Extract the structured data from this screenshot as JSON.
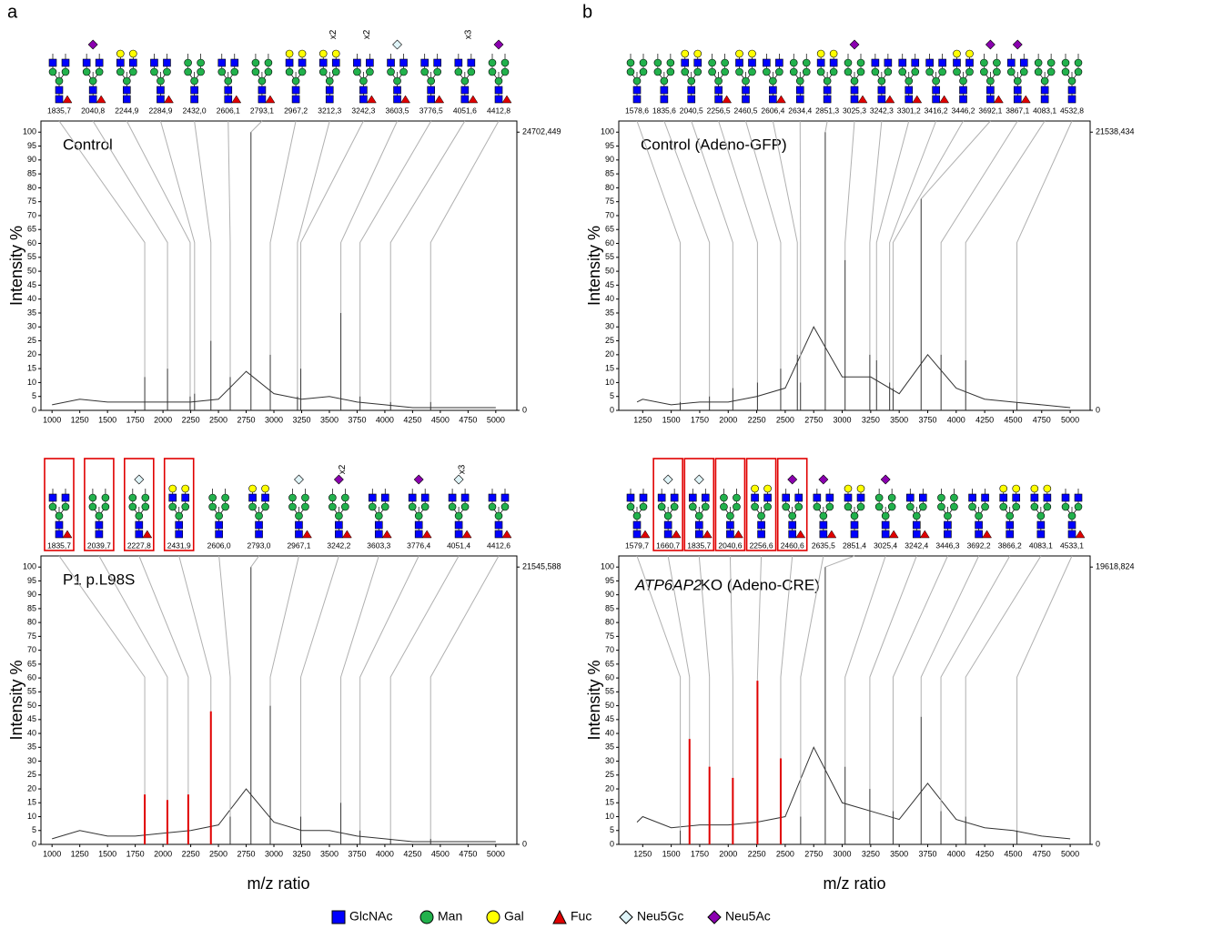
{
  "panel_labels": [
    "a",
    "b"
  ],
  "y_label": "Intensity %",
  "x_label": "m/z ratio",
  "legend": [
    {
      "name": "GlcNAc",
      "color": "#0000ff",
      "shape": "square"
    },
    {
      "name": "Man",
      "color": "#22b14c",
      "shape": "circle"
    },
    {
      "name": "Gal",
      "color": "#ffff00",
      "shape": "circle"
    },
    {
      "name": "Fuc",
      "color": "#e00000",
      "shape": "triangle"
    },
    {
      "name": "Neu5Gc",
      "color": "#dff4f8",
      "shape": "diamond"
    },
    {
      "name": "Neu5Ac",
      "color": "#8b00b0",
      "shape": "diamond"
    }
  ],
  "chart_data": [
    {
      "type": "spectrum",
      "title": "Control",
      "xlim": [
        900,
        5190
      ],
      "xticks": [
        1000,
        1250,
        1500,
        1750,
        2000,
        2250,
        2500,
        2750,
        3000,
        3250,
        3500,
        3750,
        4000,
        4250,
        4500,
        4750,
        5000
      ],
      "ylim": [
        0,
        104
      ],
      "yticks": [
        0,
        5,
        10,
        15,
        20,
        25,
        30,
        35,
        40,
        45,
        50,
        55,
        60,
        65,
        70,
        75,
        80,
        85,
        90,
        95,
        100
      ],
      "y2lim": [
        0,
        25690.547
      ],
      "y2ticks": [
        0,
        {
          "value": 24702.449,
          "label": "24702,449"
        }
      ],
      "x": [
        1000,
        1250,
        1500,
        1750,
        2000,
        2250,
        2500,
        2750,
        3000,
        3250,
        3500,
        3750,
        4000,
        4250,
        4500,
        4750,
        5000
      ],
      "values": [
        2,
        4,
        3,
        3,
        3,
        3,
        4,
        14,
        6,
        4,
        5,
        3,
        2,
        1,
        1,
        1,
        1
      ],
      "peaks": [
        {
          "value": 1835.7,
          "label": "1835,7"
        },
        {
          "value": 2040.8,
          "label": "2040,8"
        },
        {
          "value": 2244.9,
          "label": "2244,9"
        },
        {
          "value": 2284.9,
          "label": "2284,9"
        },
        {
          "value": 2432.0,
          "label": "2432,0"
        },
        {
          "value": 2606.1,
          "label": "2606,1"
        },
        {
          "value": 2793.1,
          "label": "2793,1"
        },
        {
          "value": 2967.2,
          "label": "2967,2"
        },
        {
          "value": 3212.3,
          "label": "3212,3"
        },
        {
          "value": 3242.3,
          "label": "3242,3"
        },
        {
          "value": 3603.5,
          "label": "3603,5"
        },
        {
          "value": 3776.5,
          "label": "3776,5"
        },
        {
          "value": 4051.6,
          "label": "4051,6"
        },
        {
          "value": 4412.8,
          "label": "4412,8"
        }
      ],
      "peak_values": [
        12,
        15,
        5,
        6,
        25,
        12,
        100,
        20,
        5,
        15,
        35,
        5,
        3,
        3
      ],
      "highlight": [
        false,
        false,
        false,
        false,
        false,
        false,
        false,
        false,
        false,
        false,
        false,
        false,
        false,
        false
      ],
      "multipliers": [
        null,
        null,
        null,
        null,
        null,
        null,
        null,
        null,
        "x2",
        "x2",
        null,
        null,
        "x3",
        null
      ],
      "line_color": "#333333",
      "highlight_color": "#e00000"
    },
    {
      "type": "spectrum",
      "title": "Control (Adeno-GFP)",
      "xlim": [
        1040,
        5175
      ],
      "xticks": [
        1250,
        1500,
        1750,
        2000,
        2250,
        2500,
        2750,
        3000,
        3250,
        3500,
        3750,
        4000,
        4250,
        4500,
        4750,
        5000
      ],
      "ylim": [
        0,
        104
      ],
      "yticks": [
        0,
        5,
        10,
        15,
        20,
        25,
        30,
        35,
        40,
        45,
        50,
        55,
        60,
        65,
        70,
        75,
        80,
        85,
        90,
        95,
        100
      ],
      "y2lim": [
        0,
        22399.971
      ],
      "y2ticks": [
        0,
        {
          "value": 21538.434,
          "label": "21538,434"
        }
      ],
      "x": [
        1200,
        1250,
        1500,
        1750,
        2000,
        2250,
        2500,
        2750,
        3000,
        3250,
        3500,
        3750,
        4000,
        4250,
        4500,
        4750,
        5000
      ],
      "values": [
        3,
        4,
        2,
        3,
        3,
        5,
        8,
        30,
        12,
        12,
        6,
        20,
        8,
        4,
        3,
        2,
        1
      ],
      "peaks": [
        {
          "value": 1578.6,
          "label": "1578,6"
        },
        {
          "value": 1835.6,
          "label": "1835,6"
        },
        {
          "value": 2040.5,
          "label": "2040,5"
        },
        {
          "value": 2256.5,
          "label": "2256,5"
        },
        {
          "value": 2460.5,
          "label": "2460,5"
        },
        {
          "value": 2606.4,
          "label": "2606,4"
        },
        {
          "value": 2634.4,
          "label": "2634,4"
        },
        {
          "value": 2851.3,
          "label": "2851,3"
        },
        {
          "value": 3025.3,
          "label": "3025,3"
        },
        {
          "value": 3242.3,
          "label": "3242,3"
        },
        {
          "value": 3301.2,
          "label": "3301,2"
        },
        {
          "value": 3416.2,
          "label": "3416,2"
        },
        {
          "value": 3446.2,
          "label": "3446,2"
        },
        {
          "value": 3692.1,
          "label": "3692,1"
        },
        {
          "value": 3867.1,
          "label": "3867,1"
        },
        {
          "value": 4083.1,
          "label": "4083,1"
        },
        {
          "value": 4532.8,
          "label": "4532,8"
        }
      ],
      "peak_values": [
        3,
        5,
        8,
        10,
        15,
        20,
        10,
        100,
        54,
        20,
        18,
        10,
        8,
        76,
        20,
        18,
        3
      ],
      "highlight": [
        false,
        false,
        false,
        false,
        false,
        false,
        false,
        false,
        false,
        false,
        false,
        false,
        false,
        false,
        false,
        false,
        false
      ],
      "multipliers": [
        null,
        null,
        null,
        null,
        null,
        null,
        null,
        null,
        null,
        null,
        null,
        null,
        null,
        null,
        null,
        null,
        null
      ],
      "line_color": "#333333",
      "highlight_color": "#e00000"
    },
    {
      "type": "spectrum",
      "title": "P1 p.L98S",
      "xlim": [
        900,
        5190
      ],
      "xticks": [
        1000,
        1250,
        1500,
        1750,
        2000,
        2250,
        2500,
        2750,
        3000,
        3250,
        3500,
        3750,
        4000,
        4250,
        4500,
        4750,
        5000
      ],
      "ylim": [
        0,
        104
      ],
      "yticks": [
        0,
        5,
        10,
        15,
        20,
        25,
        30,
        35,
        40,
        45,
        50,
        55,
        60,
        65,
        70,
        75,
        80,
        85,
        90,
        95,
        100
      ],
      "y2lim": [
        0,
        22407.412
      ],
      "y2ticks": [
        0,
        {
          "value": 21545.588,
          "label": "21545,588"
        }
      ],
      "x": [
        1000,
        1250,
        1500,
        1750,
        2000,
        2250,
        2500,
        2750,
        3000,
        3250,
        3500,
        3750,
        4000,
        4250,
        4500,
        4750,
        5000
      ],
      "values": [
        2,
        5,
        3,
        3,
        4,
        5,
        7,
        20,
        8,
        5,
        5,
        3,
        2,
        1,
        1,
        1,
        1
      ],
      "peaks": [
        {
          "value": 1835.7,
          "label": "1835,7"
        },
        {
          "value": 2039.7,
          "label": "2039,7"
        },
        {
          "value": 2227.8,
          "label": "2227,8"
        },
        {
          "value": 2431.9,
          "label": "2431,9"
        },
        {
          "value": 2606.0,
          "label": "2606,0"
        },
        {
          "value": 2793.0,
          "label": "2793,0"
        },
        {
          "value": 2967.1,
          "label": "2967,1"
        },
        {
          "value": 3242.2,
          "label": "3242,2"
        },
        {
          "value": 3603.3,
          "label": "3603,3"
        },
        {
          "value": 3776.4,
          "label": "3776,4"
        },
        {
          "value": 4051.4,
          "label": "4051,4"
        },
        {
          "value": 4412.6,
          "label": "4412,6"
        }
      ],
      "peak_values": [
        18,
        16,
        18,
        48,
        10,
        100,
        50,
        10,
        15,
        5,
        2,
        2
      ],
      "highlight": [
        true,
        true,
        true,
        true,
        false,
        false,
        false,
        false,
        false,
        false,
        false,
        false
      ],
      "multipliers": [
        null,
        null,
        null,
        null,
        null,
        null,
        null,
        "x2",
        null,
        null,
        "x3",
        null
      ],
      "line_color": "#333333",
      "highlight_color": "#e00000"
    },
    {
      "type": "spectrum",
      "title_italic": "ATP6AP2",
      "title": "KO (Adeno-CRE)",
      "xlim": [
        1040,
        5175
      ],
      "xticks": [
        1250,
        1500,
        1750,
        2000,
        2250,
        2500,
        2750,
        3000,
        3250,
        3500,
        3750,
        4000,
        4250,
        4500,
        4750,
        5000
      ],
      "ylim": [
        0,
        104
      ],
      "yticks": [
        0,
        5,
        10,
        15,
        20,
        25,
        30,
        35,
        40,
        45,
        50,
        55,
        60,
        65,
        70,
        75,
        80,
        85,
        90,
        95,
        100
      ],
      "y2lim": [
        0,
        20403.577
      ],
      "y2ticks": [
        0,
        {
          "value": 19618.824,
          "label": "19618,824"
        }
      ],
      "x": [
        1200,
        1250,
        1500,
        1750,
        2000,
        2250,
        2500,
        2750,
        3000,
        3250,
        3500,
        3750,
        4000,
        4250,
        4500,
        4750,
        5000
      ],
      "values": [
        8,
        10,
        6,
        7,
        7,
        8,
        10,
        35,
        15,
        12,
        9,
        22,
        9,
        6,
        5,
        3,
        2
      ],
      "peaks": [
        {
          "value": 1579.7,
          "label": "1579,7"
        },
        {
          "value": 1660.7,
          "label": "1660,7"
        },
        {
          "value": 1835.7,
          "label": "1835,7"
        },
        {
          "value": 2040.6,
          "label": "2040,6"
        },
        {
          "value": 2256.6,
          "label": "2256,6"
        },
        {
          "value": 2460.6,
          "label": "2460,6"
        },
        {
          "value": 2635.5,
          "label": "2635,5"
        },
        {
          "value": 2851.4,
          "label": "2851,4"
        },
        {
          "value": 3025.4,
          "label": "3025,4"
        },
        {
          "value": 3242.4,
          "label": "3242,4"
        },
        {
          "value": 3446.3,
          "label": "3446,3"
        },
        {
          "value": 3692.2,
          "label": "3692,2"
        },
        {
          "value": 3866.2,
          "label": "3866,2"
        },
        {
          "value": 4083.1,
          "label": "4083,1"
        },
        {
          "value": 4533.1,
          "label": "4533,1"
        }
      ],
      "peak_values": [
        5,
        38,
        28,
        24,
        59,
        31,
        10,
        100,
        28,
        20,
        12,
        46,
        12,
        10,
        5
      ],
      "highlight": [
        false,
        true,
        true,
        true,
        true,
        true,
        false,
        false,
        false,
        false,
        false,
        false,
        false,
        false,
        false
      ],
      "multipliers": [
        null,
        null,
        null,
        null,
        null,
        null,
        null,
        null,
        null,
        null,
        null,
        null,
        null,
        null,
        null
      ],
      "line_color": "#333333",
      "highlight_color": "#e00000"
    }
  ]
}
